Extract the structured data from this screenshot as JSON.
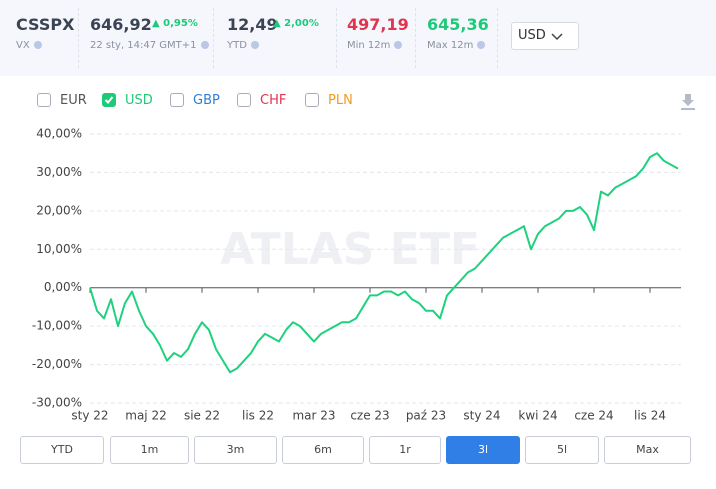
{
  "header": {
    "ticker": "CSSPX",
    "exchange": "VX",
    "price": "646,92",
    "change": "0,95%",
    "timestamp": "22 sty, 14:47 GMT+1",
    "ytd_value": "12,49",
    "ytd_change": "2,00%",
    "ytd_label": "YTD",
    "min_value": "497,19",
    "min_label": "Min 12m",
    "max_value": "645,36",
    "max_label": "Max 12m",
    "currency": "USD"
  },
  "currencies": [
    {
      "label": "EUR",
      "checked": false,
      "color": "#555555"
    },
    {
      "label": "USD",
      "checked": true,
      "color": "#1fc97a"
    },
    {
      "label": "GBP",
      "checked": false,
      "color": "#2f7fd6"
    },
    {
      "label": "CHF",
      "checked": false,
      "color": "#e0344f"
    },
    {
      "label": "PLN",
      "checked": false,
      "color": "#f39a1e"
    }
  ],
  "ranges": [
    {
      "label": "YTD",
      "active": false
    },
    {
      "label": "1m",
      "active": false
    },
    {
      "label": "3m",
      "active": false
    },
    {
      "label": "6m",
      "active": false
    },
    {
      "label": "1r",
      "active": false
    },
    {
      "label": "3l",
      "active": true
    },
    {
      "label": "5l",
      "active": false
    },
    {
      "label": "Max",
      "active": false
    }
  ],
  "chart_data": {
    "type": "line",
    "watermark": "ATLAS ETF",
    "categories": [
      "sty 22",
      null,
      null,
      null,
      null,
      null,
      null,
      null,
      "maj 22",
      null,
      null,
      null,
      null,
      null,
      null,
      null,
      "sie 22",
      null,
      null,
      null,
      null,
      null,
      null,
      null,
      "lis 22",
      null,
      null,
      null,
      null,
      null,
      null,
      null,
      "mar 23",
      null,
      null,
      null,
      null,
      null,
      null,
      null,
      "cze 23",
      null,
      null,
      null,
      null,
      null,
      null,
      null,
      "paź 23",
      null,
      null,
      null,
      null,
      null,
      null,
      null,
      "sty 24",
      null,
      null,
      null,
      null,
      null,
      null,
      null,
      "kwi 24",
      null,
      null,
      null,
      null,
      null,
      null,
      null,
      "cze 24",
      null,
      null,
      null,
      null,
      null,
      null,
      null,
      "lis 24",
      null,
      null,
      null,
      null
    ],
    "series": [
      {
        "name": "USD",
        "color": "#1fd17f",
        "values": [
          0,
          -6,
          -8,
          -3,
          -10,
          -4,
          -1,
          -6,
          -10,
          -12,
          -15,
          -19,
          -17,
          -18,
          -16,
          -12,
          -9,
          -11,
          -16,
          -19,
          -22,
          -21,
          -19,
          -17,
          -14,
          -12,
          -13,
          -14,
          -11,
          -9,
          -10,
          -12,
          -14,
          -12,
          -11,
          -10,
          -9,
          -9,
          -8,
          -5,
          -2,
          -2,
          -1,
          -1,
          -2,
          -1,
          -3,
          -4,
          -6,
          -6,
          -8,
          -2,
          0,
          2,
          4,
          5,
          7,
          9,
          11,
          13,
          14,
          15,
          16,
          10,
          14,
          16,
          17,
          18,
          20,
          20,
          21,
          19,
          15,
          25,
          24,
          26,
          27,
          28,
          29,
          31,
          34,
          35,
          33,
          32,
          31
        ]
      }
    ],
    "ylim": [
      -30,
      40
    ],
    "yticks": [
      {
        "value": -30,
        "label": "-30,00%"
      },
      {
        "value": -20,
        "label": "-20,00%"
      },
      {
        "value": -10,
        "label": "-10,00%"
      },
      {
        "value": 0,
        "label": "0,00%"
      },
      {
        "value": 10,
        "label": "10,00%"
      },
      {
        "value": 20,
        "label": "20,00%"
      },
      {
        "value": 30,
        "label": "30,00%"
      },
      {
        "value": 40,
        "label": "40,00%"
      }
    ],
    "grid": true
  }
}
